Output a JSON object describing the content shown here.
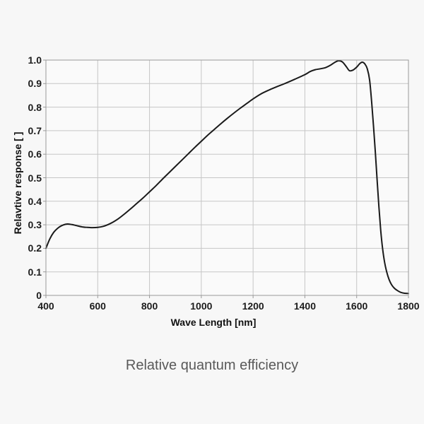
{
  "page": {
    "background": "#f7f7f7"
  },
  "chart_data": {
    "type": "line",
    "title": "Relative quantum efficiency",
    "xlabel": "Wave Length [nm]",
    "ylabel": "Relavtive response [ ]",
    "xlim": [
      400,
      1800
    ],
    "ylim": [
      0,
      1.0
    ],
    "xticks": [
      400,
      600,
      800,
      1000,
      1200,
      1400,
      1600,
      1800
    ],
    "yticks": [
      0,
      0.1,
      0.2,
      0.3,
      0.4,
      0.5,
      0.6,
      0.7,
      0.8,
      0.9,
      1.0
    ],
    "ytick_labels": [
      "0",
      "0.1",
      "0.2",
      "0.3",
      "0.4",
      "0.5",
      "0.6",
      "0.7",
      "0.8",
      "0.9",
      "1.0"
    ],
    "grid": true,
    "legend": false,
    "line_color": "#1a1a1a",
    "grid_color": "#c6c6c6",
    "axis_color": "#999999",
    "plot_bg": "#fafafa",
    "series": [
      {
        "name": "relative response",
        "x": [
          400,
          415,
          430,
          445,
          460,
          480,
          500,
          520,
          540,
          560,
          580,
          600,
          620,
          640,
          660,
          680,
          700,
          725,
          750,
          775,
          800,
          825,
          850,
          875,
          900,
          925,
          950,
          975,
          1000,
          1025,
          1050,
          1075,
          1100,
          1125,
          1150,
          1175,
          1200,
          1230,
          1260,
          1290,
          1320,
          1360,
          1400,
          1420,
          1440,
          1460,
          1480,
          1500,
          1515,
          1530,
          1545,
          1560,
          1572,
          1585,
          1600,
          1612,
          1622,
          1632,
          1641,
          1650,
          1658,
          1665,
          1672,
          1679,
          1686,
          1693,
          1700,
          1708,
          1716,
          1725,
          1735,
          1746,
          1758,
          1770,
          1785,
          1800
        ],
        "y": [
          0.2,
          0.24,
          0.268,
          0.285,
          0.296,
          0.303,
          0.301,
          0.296,
          0.291,
          0.289,
          0.288,
          0.289,
          0.293,
          0.301,
          0.312,
          0.326,
          0.343,
          0.366,
          0.39,
          0.414,
          0.44,
          0.466,
          0.494,
          0.521,
          0.548,
          0.575,
          0.602,
          0.629,
          0.655,
          0.681,
          0.705,
          0.729,
          0.752,
          0.774,
          0.795,
          0.815,
          0.835,
          0.856,
          0.872,
          0.886,
          0.899,
          0.918,
          0.938,
          0.951,
          0.959,
          0.963,
          0.968,
          0.979,
          0.99,
          0.997,
          0.992,
          0.972,
          0.955,
          0.957,
          0.97,
          0.985,
          0.991,
          0.983,
          0.963,
          0.915,
          0.82,
          0.72,
          0.61,
          0.49,
          0.375,
          0.275,
          0.2,
          0.14,
          0.1,
          0.068,
          0.045,
          0.03,
          0.02,
          0.013,
          0.009,
          0.008
        ]
      }
    ]
  }
}
